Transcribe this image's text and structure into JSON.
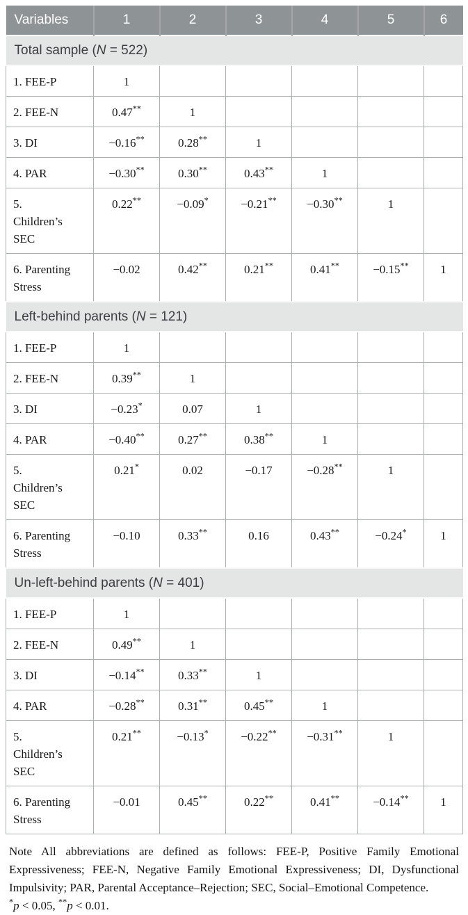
{
  "table": {
    "header": {
      "variables": "Variables",
      "columns": [
        "1",
        "2",
        "3",
        "4",
        "5",
        "6"
      ]
    },
    "sections": [
      {
        "title_pre": "Total sample (",
        "title_n": "N",
        "title_post": " = 522)",
        "rows": [
          {
            "label": "1. FEE-P",
            "cells": [
              "1",
              "",
              "",
              "",
              "",
              ""
            ]
          },
          {
            "label": "2. FEE-N",
            "cells": [
              "0.47**",
              "1",
              "",
              "",
              "",
              ""
            ]
          },
          {
            "label": "3. DI",
            "cells": [
              "−0.16**",
              "0.28**",
              "1",
              "",
              "",
              ""
            ]
          },
          {
            "label": "4. PAR",
            "cells": [
              "−0.30**",
              "0.30**",
              "0.43**",
              "1",
              "",
              ""
            ]
          },
          {
            "label": "5.\nChildren’s\nSEC",
            "cells": [
              "0.22**",
              "−0.09*",
              "−0.21**",
              "−0.30**",
              "1",
              ""
            ]
          },
          {
            "label": "6. Parenting\nStress",
            "cells": [
              "−0.02",
              "0.42**",
              "0.21**",
              "0.41**",
              "−0.15**",
              "1"
            ]
          }
        ]
      },
      {
        "title_pre": "Left-behind parents (",
        "title_n": "N",
        "title_post": " = 121)",
        "rows": [
          {
            "label": "1. FEE-P",
            "cells": [
              "1",
              "",
              "",
              "",
              "",
              ""
            ]
          },
          {
            "label": "2. FEE-N",
            "cells": [
              "0.39**",
              "1",
              "",
              "",
              "",
              ""
            ]
          },
          {
            "label": "3. DI",
            "cells": [
              "−0.23*",
              "0.07",
              "1",
              "",
              "",
              ""
            ]
          },
          {
            "label": "4. PAR",
            "cells": [
              "−0.40**",
              "0.27**",
              "0.38**",
              "1",
              "",
              ""
            ]
          },
          {
            "label": "5.\nChildren’s\nSEC",
            "cells": [
              "0.21*",
              "0.02",
              "−0.17",
              "−0.28**",
              "1",
              ""
            ]
          },
          {
            "label": "6. Parenting\nStress",
            "cells": [
              "−0.10",
              "0.33**",
              "0.16",
              "0.43**",
              "−0.24*",
              "1"
            ]
          }
        ]
      },
      {
        "title_pre": "Un-left-behind parents (",
        "title_n": "N",
        "title_post": " = 401)",
        "rows": [
          {
            "label": "1. FEE-P",
            "cells": [
              "1",
              "",
              "",
              "",
              "",
              ""
            ]
          },
          {
            "label": "2. FEE-N",
            "cells": [
              "0.49**",
              "1",
              "",
              "",
              "",
              ""
            ]
          },
          {
            "label": "3. DI",
            "cells": [
              "−0.14**",
              "0.33**",
              "1",
              "",
              "",
              ""
            ]
          },
          {
            "label": "4. PAR",
            "cells": [
              "−0.28**",
              "0.31**",
              "0.45**",
              "1",
              "",
              ""
            ]
          },
          {
            "label": "5.\nChildren’s\nSEC",
            "cells": [
              "0.21**",
              "−0.13*",
              "−0.22**",
              "−0.31**",
              "1",
              ""
            ]
          },
          {
            "label": "6. Parenting\nStress",
            "cells": [
              "−0.01",
              "0.45**",
              "0.22**",
              "0.41**",
              "−0.14**",
              "1"
            ]
          }
        ]
      }
    ]
  },
  "note": {
    "main": "Note All abbreviations are defined as follows: FEE-P, Positive Family Emotional Expressiveness; FEE-N, Negative Family Emotional Expressiveness; DI, Dysfunctional Impulsivity; PAR, Parental Acceptance–Rejection; SEC, Social–Emotional Competence.",
    "sig": {
      "s1": "*",
      "p1": "p",
      "r1": " < 0.05, ",
      "s2": "**",
      "p2": "p",
      "r2": " < 0.01."
    }
  },
  "colors": {
    "header_bg": "#8e9396",
    "header_text": "#ffffff",
    "section_bg": "#e4e5e5",
    "grid_line": "#abaeae"
  }
}
